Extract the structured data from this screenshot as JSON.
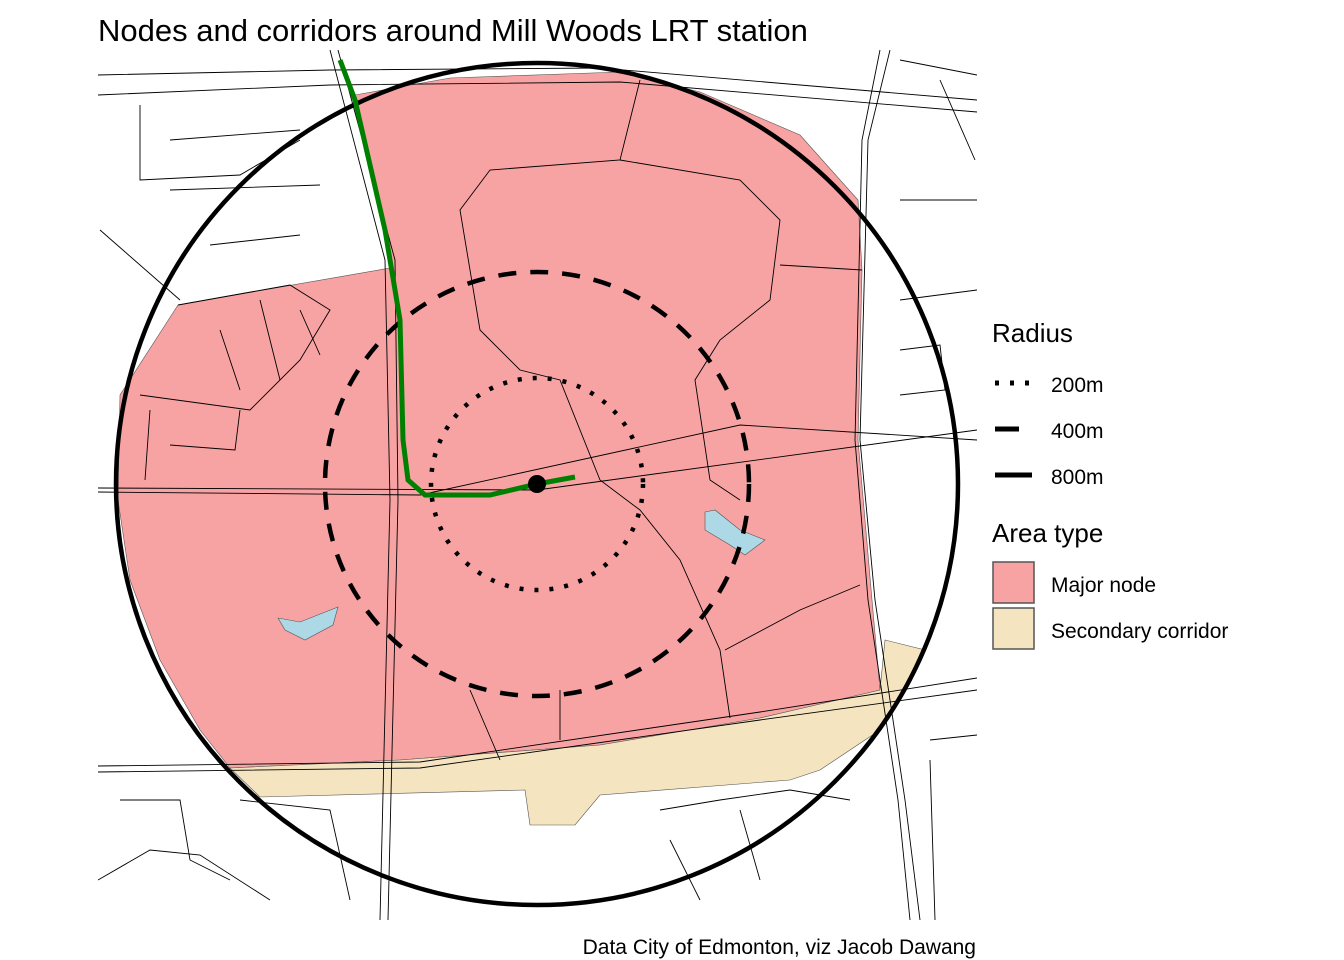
{
  "title": "Nodes and corridors around Mill Woods LRT station",
  "caption": "Data City of Edmonton, viz Jacob Dawang",
  "legend": {
    "radius": {
      "title": "Radius",
      "items": [
        {
          "label": "200m",
          "linetype": "dotted"
        },
        {
          "label": "400m",
          "linetype": "dashed"
        },
        {
          "label": "800m",
          "linetype": "solid"
        }
      ]
    },
    "area_type": {
      "title": "Area type",
      "items": [
        {
          "label": "Major node",
          "color": "#F8A3A3"
        },
        {
          "label": "Secondary corridor",
          "color": "#F5E4C0"
        }
      ]
    }
  },
  "colors": {
    "major_node": "#F8A3A3",
    "secondary_corridor": "#F5E4C0",
    "water": "#ADD8E6",
    "lrt_line": "#008000",
    "roads": "#000000",
    "radius_rings": "#000000"
  },
  "map": {
    "station": "Mill Woods LRT station",
    "radii_m": [
      200,
      400,
      800
    ]
  }
}
